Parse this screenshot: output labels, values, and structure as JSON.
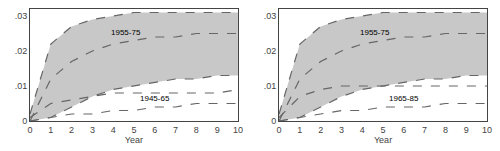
{
  "chart_data": [
    {
      "type": "line",
      "x": [
        0,
        1,
        2,
        3,
        4,
        5,
        6,
        7,
        8,
        9,
        10
      ],
      "xlabel": "Year",
      "xlim": [
        0,
        10
      ],
      "xticks": [
        0,
        1,
        2,
        3,
        4,
        5,
        6,
        7,
        8,
        9,
        10
      ],
      "ylim": [
        0,
        0.032
      ],
      "yticks": [
        0,
        {
          "value": 0.01,
          "label": ".01"
        },
        {
          "value": 0.02,
          "label": ".02"
        },
        {
          "value": 0.03,
          "label": ".03"
        }
      ],
      "grid": false,
      "series": [
        {
          "type": "band",
          "color": "#c8c8c8",
          "lower": [
            0.0,
            0.001,
            0.004,
            0.007,
            0.009,
            0.01,
            0.011,
            0.012,
            0.012,
            0.013,
            0.013
          ],
          "upper": [
            0.002,
            0.022,
            0.027,
            0.029,
            0.03,
            0.031,
            0.031,
            0.031,
            0.031,
            0.031,
            0.031
          ]
        },
        {
          "type": "line",
          "color": "#666666",
          "line_style": "dashed",
          "values": [
            0.002,
            0.022,
            0.027,
            0.029,
            0.03,
            0.031,
            0.031,
            0.031,
            0.031,
            0.031,
            0.031
          ]
        },
        {
          "type": "line",
          "color": "#666666",
          "line_style": "dashed",
          "values": [
            0.0,
            0.001,
            0.004,
            0.007,
            0.009,
            0.01,
            0.011,
            0.012,
            0.012,
            0.013,
            0.013
          ]
        },
        {
          "type": "line",
          "color": "#666666",
          "line_style": "dashed",
          "values": [
            0.0,
            0.012,
            0.017,
            0.02,
            0.022,
            0.023,
            0.024,
            0.024,
            0.025,
            0.025,
            0.025
          ]
        },
        {
          "type": "line",
          "color": "#666666",
          "line_style": "dashed",
          "values": [
            0.001,
            0.005,
            0.006,
            0.007,
            0.008,
            0.008,
            0.008,
            0.008,
            0.008,
            0.008,
            0.009
          ]
        },
        {
          "type": "line",
          "color": "#666666",
          "line_style": "dashed",
          "values": [
            0.0,
            0.001,
            0.002,
            0.002,
            0.003,
            0.003,
            0.004,
            0.004,
            0.005,
            0.005,
            0.005
          ]
        }
      ],
      "annotations": [
        {
          "text": "1955-75"
        },
        {
          "text": "1945-65",
          "x": 5.2,
          "y": 0.0045
        }
      ]
    },
    {
      "type": "line",
      "x": [
        0,
        1,
        2,
        3,
        4,
        5,
        6,
        7,
        8,
        9,
        10
      ],
      "xlabel": "Year",
      "xlim": [
        0,
        10
      ],
      "xticks": [
        0,
        1,
        2,
        3,
        4,
        5,
        6,
        7,
        8,
        9,
        10
      ],
      "ylim": [
        0,
        0.032
      ],
      "yticks": [
        0,
        {
          "value": 0.01,
          "label": ".01"
        },
        {
          "value": 0.02,
          "label": ".02"
        },
        {
          "value": 0.03,
          "label": ".03"
        }
      ],
      "grid": false,
      "series": [
        {
          "type": "band",
          "color": "#c8c8c8",
          "lower": [
            0.0,
            0.001,
            0.004,
            0.007,
            0.009,
            0.01,
            0.011,
            0.012,
            0.012,
            0.013,
            0.013
          ],
          "upper": [
            0.002,
            0.022,
            0.027,
            0.029,
            0.03,
            0.031,
            0.031,
            0.031,
            0.031,
            0.031,
            0.031
          ]
        },
        {
          "type": "line",
          "color": "#666666",
          "line_style": "dashed",
          "values": [
            0.002,
            0.022,
            0.027,
            0.029,
            0.03,
            0.031,
            0.031,
            0.031,
            0.031,
            0.031,
            0.031
          ]
        },
        {
          "type": "line",
          "color": "#666666",
          "line_style": "dashed",
          "values": [
            0.0,
            0.001,
            0.004,
            0.007,
            0.009,
            0.01,
            0.011,
            0.012,
            0.012,
            0.013,
            0.013
          ]
        },
        {
          "type": "line",
          "color": "#666666",
          "line_style": "dashed",
          "values": [
            0.0,
            0.012,
            0.017,
            0.02,
            0.022,
            0.023,
            0.024,
            0.024,
            0.025,
            0.025,
            0.025
          ]
        },
        {
          "type": "line",
          "color": "#666666",
          "line_style": "dashed",
          "values": [
            0.001,
            0.007,
            0.009,
            0.01,
            0.01,
            0.01,
            0.01,
            0.01,
            0.01,
            0.01,
            0.01
          ]
        },
        {
          "type": "line",
          "color": "#666666",
          "line_style": "dashed",
          "values": [
            0.0,
            0.001,
            0.002,
            0.003,
            0.003,
            0.004,
            0.004,
            0.004,
            0.005,
            0.005,
            0.005
          ]
        }
      ],
      "annotations": [
        {
          "text": "1955-75"
        },
        {
          "text": "1965-85",
          "x": 5.2,
          "y": 0.0047
        }
      ]
    }
  ]
}
